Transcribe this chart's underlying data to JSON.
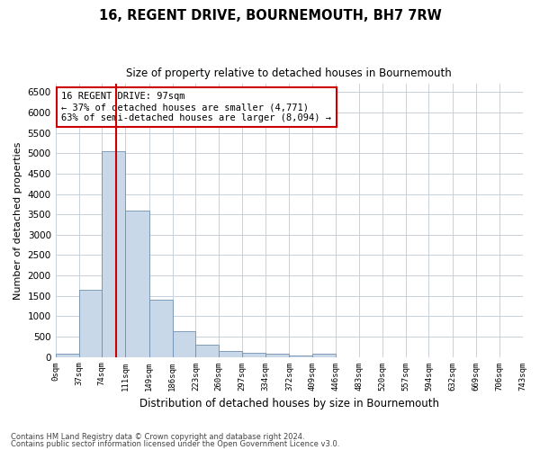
{
  "title": "16, REGENT DRIVE, BOURNEMOUTH, BH7 7RW",
  "subtitle": "Size of property relative to detached houses in Bournemouth",
  "xlabel": "Distribution of detached houses by size in Bournemouth",
  "ylabel": "Number of detached properties",
  "footer_line1": "Contains HM Land Registry data © Crown copyright and database right 2024.",
  "footer_line2": "Contains public sector information licensed under the Open Government Licence v3.0.",
  "bar_color": "#c8d8e8",
  "bar_edge_color": "#7090b0",
  "grid_color": "#c8d0dc",
  "annotation_box_color": "#cc0000",
  "subject_line_color": "#cc0000",
  "bin_edges": [
    0,
    37,
    74,
    111,
    149,
    186,
    223,
    260,
    297,
    334,
    372,
    409,
    446,
    483,
    520,
    557,
    594,
    632,
    669,
    706,
    743
  ],
  "bin_labels": [
    "0sqm",
    "37sqm",
    "74sqm",
    "111sqm",
    "149sqm",
    "186sqm",
    "223sqm",
    "260sqm",
    "297sqm",
    "334sqm",
    "372sqm",
    "409sqm",
    "446sqm",
    "483sqm",
    "520sqm",
    "557sqm",
    "594sqm",
    "632sqm",
    "669sqm",
    "706sqm",
    "743sqm"
  ],
  "bar_heights": [
    70,
    1650,
    5060,
    3600,
    1410,
    620,
    290,
    140,
    95,
    70,
    45,
    70,
    0,
    0,
    0,
    0,
    0,
    0,
    0,
    0
  ],
  "subject_sqm": 97,
  "ylim": [
    0,
    6700
  ],
  "yticks": [
    0,
    500,
    1000,
    1500,
    2000,
    2500,
    3000,
    3500,
    4000,
    4500,
    5000,
    5500,
    6000,
    6500
  ],
  "annotation_text": "16 REGENT DRIVE: 97sqm\n← 37% of detached houses are smaller (4,771)\n63% of semi-detached houses are larger (8,094) →",
  "background_color": "#ffffff"
}
